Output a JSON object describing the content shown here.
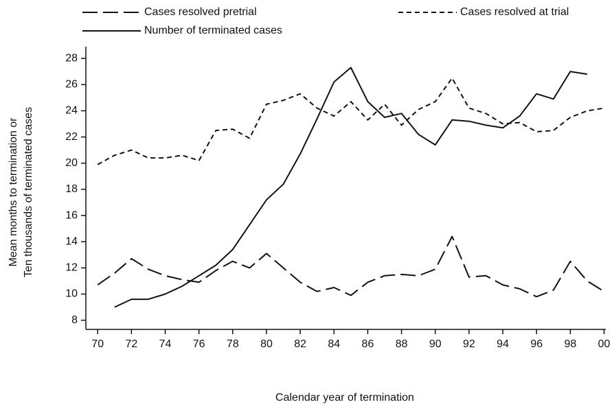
{
  "chart_data": {
    "type": "line",
    "xlabel": "Calendar year of termination",
    "ylabel": [
      "Mean months to termination or",
      "Ten thousands of terminated cases"
    ],
    "x": [
      70,
      71,
      72,
      73,
      74,
      75,
      76,
      77,
      78,
      79,
      80,
      81,
      82,
      83,
      84,
      85,
      86,
      87,
      88,
      89,
      90,
      91,
      92,
      93,
      94,
      95,
      96,
      97,
      98,
      99,
      100
    ],
    "series": [
      {
        "name": "Cases resolved pretrial",
        "color": "#111111",
        "dash": "22,8",
        "values": [
          10.7,
          11.6,
          12.7,
          11.9,
          11.4,
          11.1,
          10.9,
          11.8,
          12.5,
          12.0,
          13.1,
          12.0,
          10.9,
          10.2,
          10.5,
          9.9,
          10.9,
          11.4,
          11.5,
          11.4,
          11.9,
          14.4,
          11.3,
          11.4,
          10.7,
          10.4,
          9.8,
          10.3,
          12.5,
          11.0,
          10.2
        ]
      },
      {
        "name": "Cases resolved at trial",
        "color": "#111111",
        "dash": "7,5",
        "values": [
          19.9,
          20.6,
          21.0,
          20.4,
          20.4,
          20.6,
          20.2,
          22.5,
          22.6,
          21.9,
          24.5,
          24.8,
          25.3,
          24.2,
          23.6,
          24.7,
          23.3,
          24.5,
          22.9,
          24.1,
          24.7,
          26.5,
          24.2,
          23.8,
          23.0,
          23.1,
          22.4,
          22.5,
          23.5,
          24.0,
          24.2
        ]
      },
      {
        "name": "Number of terminated cases",
        "color": "#111111",
        "dash": "none",
        "values": [
          null,
          9.0,
          9.6,
          9.6,
          10.0,
          10.6,
          11.4,
          12.2,
          13.4,
          15.3,
          17.2,
          18.4,
          20.7,
          23.4,
          26.2,
          27.3,
          24.7,
          23.5,
          23.8,
          22.2,
          21.4,
          23.3,
          23.2,
          22.9,
          22.7,
          23.6,
          25.3,
          24.9,
          27.0,
          26.8,
          null
        ]
      }
    ],
    "xlim": [
      69.3,
      100.1
    ],
    "xticks": [
      70,
      72,
      74,
      76,
      78,
      80,
      82,
      84,
      86,
      88,
      90,
      92,
      94,
      96,
      98,
      {
        "value": 100,
        "label": "00"
      }
    ],
    "ylim": [
      7.3,
      28.9
    ],
    "yticks": [
      8,
      10,
      12,
      14,
      16,
      18,
      20,
      22,
      24,
      26,
      28
    ],
    "grid": false
  }
}
